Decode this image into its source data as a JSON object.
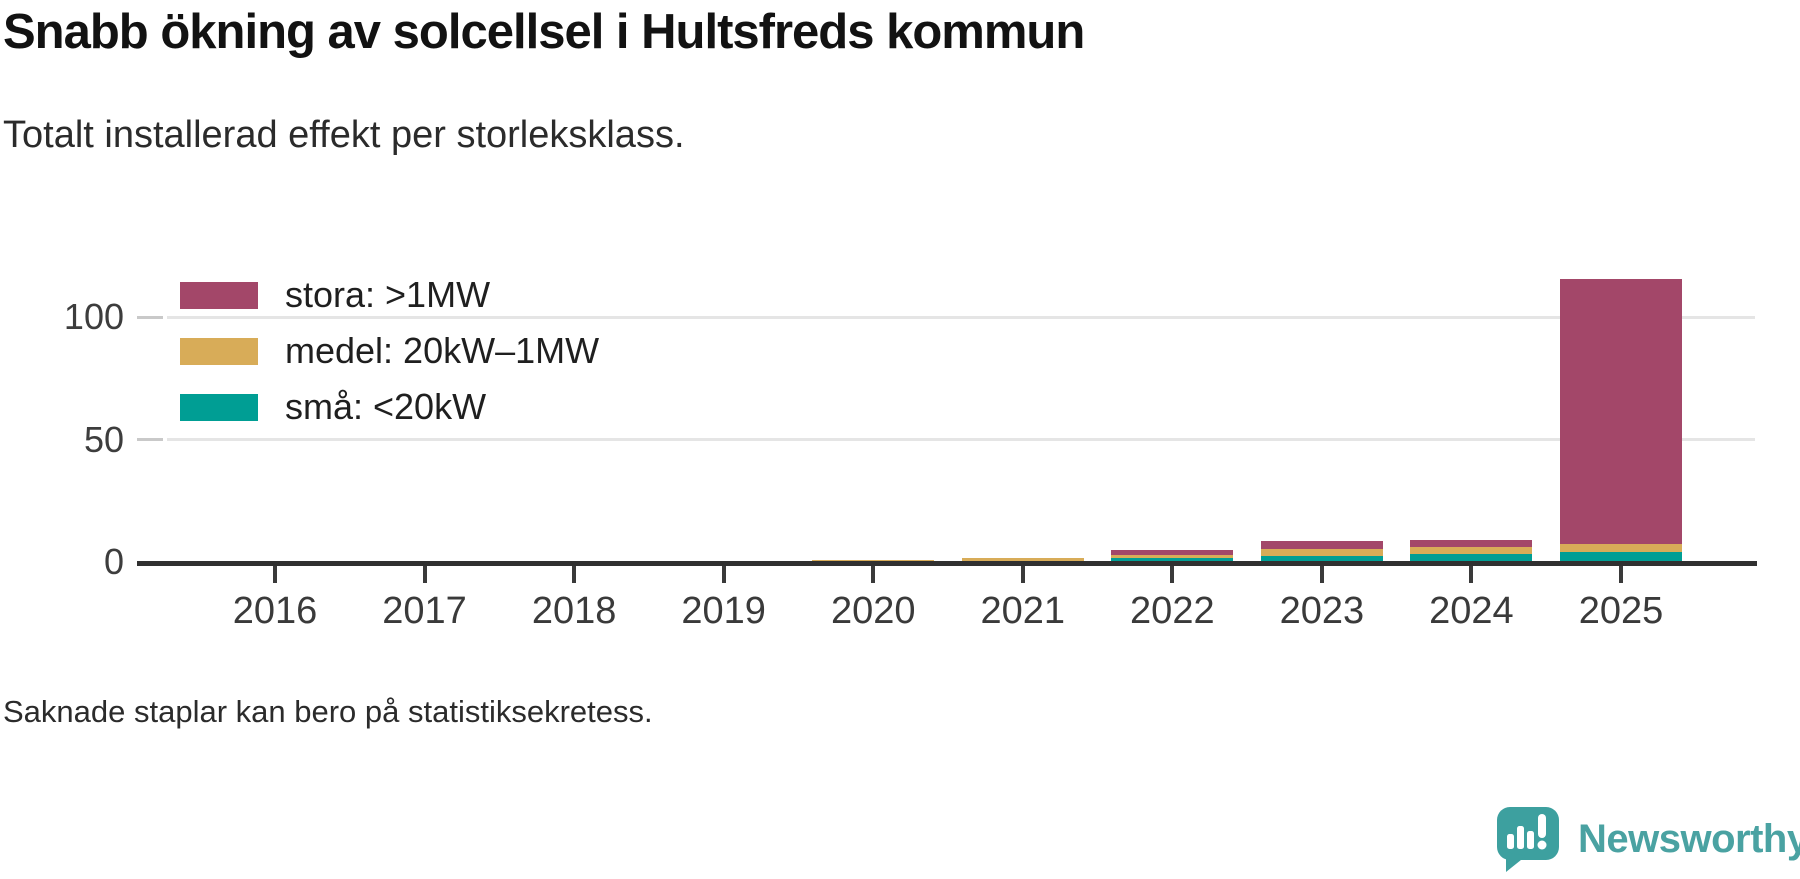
{
  "header": {
    "title": "Snabb ökning av solcellsel i Hultsfreds kommun",
    "subtitle": "Totalt installerad effekt per storleksklass."
  },
  "footer": {
    "note": "Saknade staplar kan bero på statistiksekretess."
  },
  "branding": {
    "name": "Newsworthy",
    "logo_icon": "speech-bubble-bar-chart",
    "logo_color": "#3da09f",
    "text_color": "#4aa2a2"
  },
  "chart_data": {
    "type": "bar",
    "stacked": true,
    "title": "Snabb ökning av solcellsel i Hultsfreds kommun",
    "subtitle": "Totalt installerad effekt per storleksklass.",
    "note": "Saknade staplar kan bero på statistiksekretess.",
    "categories": [
      "2016",
      "2017",
      "2018",
      "2019",
      "2020",
      "2021",
      "2022",
      "2023",
      "2024",
      "2025"
    ],
    "series": [
      {
        "name": "stora: >1MW",
        "color": "#a34769",
        "values": [
          0,
          0,
          0,
          0,
          0,
          0,
          1.9,
          2.9,
          2.6,
          108.2
        ]
      },
      {
        "name": "medel: 20kW–1MW",
        "color": "#d8ac58",
        "values": [
          0,
          0,
          0,
          0,
          0.4,
          1.0,
          1.2,
          3.1,
          2.9,
          3.2
        ]
      },
      {
        "name": "små: <20kW",
        "color": "#009e94",
        "values": [
          0,
          0,
          0,
          0,
          0.4,
          0.6,
          1.8,
          2.4,
          3.4,
          4.1
        ]
      }
    ],
    "stack_order_bottom_to_top": [
      "små: <20kW",
      "medel: 20kW–1MW",
      "stora: >1MW"
    ],
    "yticks": [
      0,
      50,
      100
    ],
    "ylim": [
      0,
      120
    ],
    "grid": "horizontal",
    "legend_position": "top-left-inside",
    "xlabel": "",
    "ylabel": ""
  }
}
